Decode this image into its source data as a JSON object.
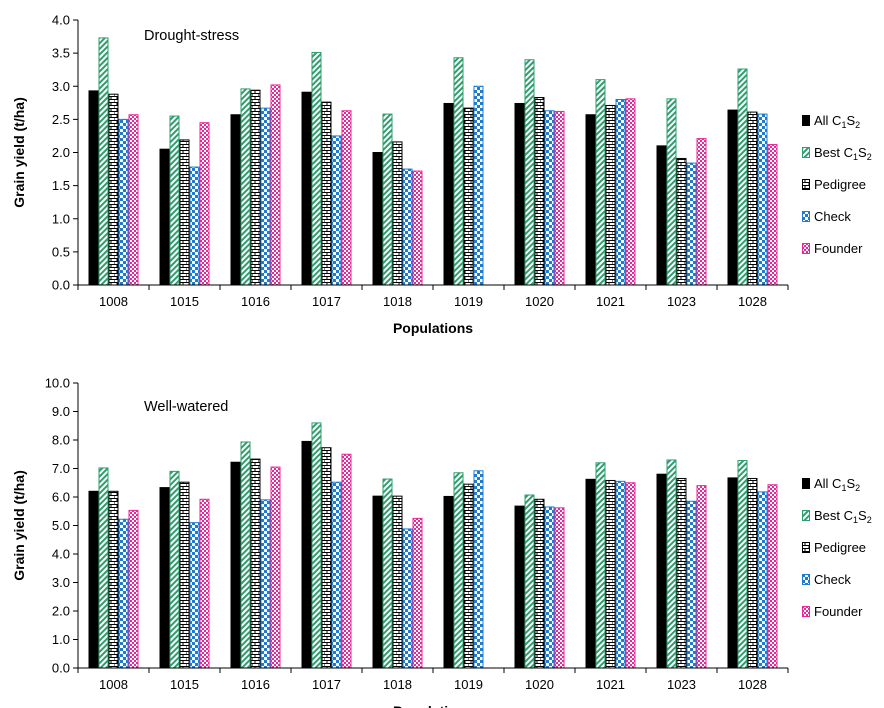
{
  "chart_data": [
    {
      "type": "bar",
      "title": "Drought-stress",
      "xlabel": "Populations",
      "ylabel": "Grain yield (t/ha)",
      "ylim": [
        0,
        4
      ],
      "yticks": [
        "0.0",
        "0.5",
        "1.0",
        "1.5",
        "2.0",
        "2.5",
        "3.0",
        "3.5",
        "4.0"
      ],
      "grid": false,
      "legend_position": "right",
      "categories": [
        "1008",
        "1015",
        "1016",
        "1017",
        "1018",
        "1019",
        "1020",
        "1021",
        "1023",
        "1028"
      ],
      "series": [
        {
          "name": "All C1S2",
          "values": [
            2.93,
            2.05,
            2.57,
            2.91,
            2.0,
            2.74,
            2.74,
            2.57,
            2.1,
            2.64
          ]
        },
        {
          "name": "Best C1S2",
          "values": [
            3.73,
            2.55,
            2.96,
            3.51,
            2.58,
            3.43,
            3.4,
            3.1,
            2.81,
            3.26
          ]
        },
        {
          "name": "Pedigree",
          "values": [
            2.88,
            2.19,
            2.94,
            2.76,
            2.16,
            2.67,
            2.83,
            2.71,
            1.91,
            2.61
          ]
        },
        {
          "name": "Check",
          "values": [
            2.5,
            1.78,
            2.67,
            2.25,
            1.75,
            3.0,
            2.63,
            2.8,
            1.84,
            2.58
          ]
        },
        {
          "name": "Founder",
          "values": [
            2.57,
            2.45,
            3.02,
            2.63,
            1.72,
            null,
            2.62,
            2.81,
            2.21,
            2.12
          ]
        }
      ]
    },
    {
      "type": "bar",
      "title": "Well-watered",
      "xlabel": "Populations",
      "ylabel": "Grain yield (t/ha)",
      "ylim": [
        0,
        10
      ],
      "yticks": [
        "0.0",
        "1.0",
        "2.0",
        "3.0",
        "4.0",
        "5.0",
        "6.0",
        "7.0",
        "8.0",
        "9.0",
        "10.0"
      ],
      "grid": false,
      "legend_position": "right",
      "categories": [
        "1008",
        "1015",
        "1016",
        "1017",
        "1018",
        "1019",
        "1020",
        "1021",
        "1023",
        "1028"
      ],
      "series": [
        {
          "name": "All C1S2",
          "values": [
            6.2,
            6.33,
            7.22,
            7.95,
            6.03,
            6.02,
            5.68,
            6.62,
            6.8,
            6.67
          ]
        },
        {
          "name": "Best C1S2",
          "values": [
            7.02,
            6.9,
            7.93,
            8.6,
            6.63,
            6.85,
            6.07,
            7.2,
            7.3,
            7.28
          ]
        },
        {
          "name": "Pedigree",
          "values": [
            6.2,
            6.52,
            7.33,
            7.73,
            6.03,
            6.45,
            5.92,
            6.58,
            6.65,
            6.65
          ]
        },
        {
          "name": "Check",
          "values": [
            5.22,
            5.1,
            5.9,
            6.52,
            4.88,
            6.92,
            5.65,
            6.55,
            5.85,
            6.18
          ]
        },
        {
          "name": "Founder",
          "values": [
            5.53,
            5.92,
            7.05,
            7.5,
            5.25,
            null,
            5.62,
            6.5,
            6.4,
            6.43
          ]
        }
      ]
    }
  ],
  "legend": [
    {
      "base": "All C",
      "sub1": "1",
      "mid": "S",
      "sub2": "2",
      "color": "#000000"
    },
    {
      "base": "Best C",
      "sub1": "1",
      "mid": "S",
      "sub2": "2",
      "color": "#2e9e6e"
    },
    {
      "base": "Pedigree",
      "color": "#000000"
    },
    {
      "base": "Check",
      "color": "#1e7bd0"
    },
    {
      "base": "Founder",
      "color": "#e8279a"
    }
  ]
}
